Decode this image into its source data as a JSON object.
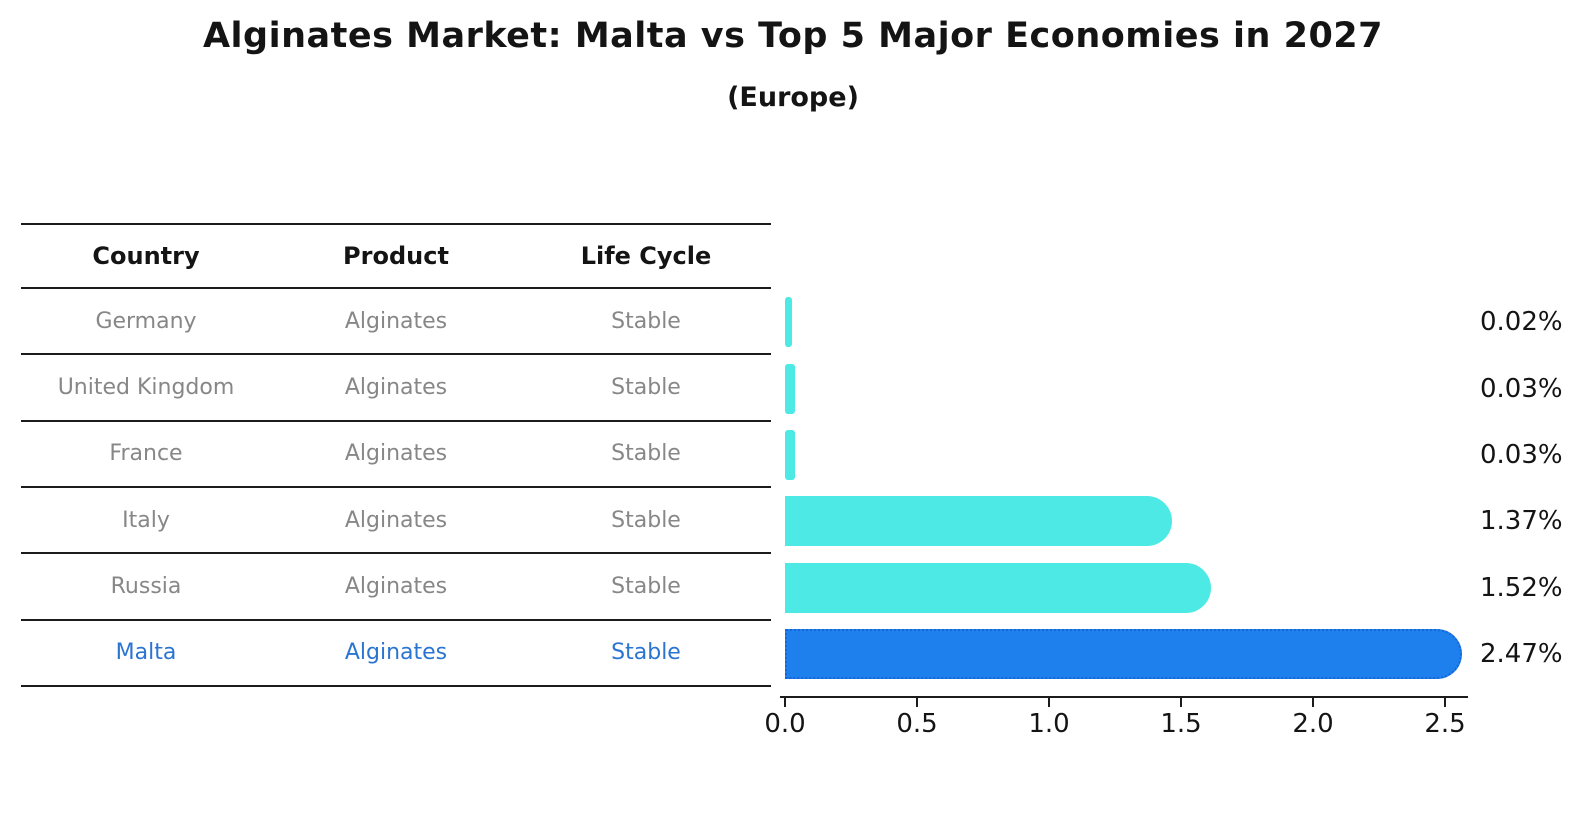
{
  "header": {
    "title": "Alginates Market: Malta vs Top 5 Major Economies in 2027",
    "subtitle": "(Europe)"
  },
  "table": {
    "columns": [
      "Country",
      "Product",
      "Life Cycle"
    ],
    "rows": [
      {
        "country": "Germany",
        "product": "Alginates",
        "life_cycle": "Stable",
        "highlight": false
      },
      {
        "country": "United Kingdom",
        "product": "Alginates",
        "life_cycle": "Stable",
        "highlight": false
      },
      {
        "country": "France",
        "product": "Alginates",
        "life_cycle": "Stable",
        "highlight": false
      },
      {
        "country": "Italy",
        "product": "Alginates",
        "life_cycle": "Stable",
        "highlight": false
      },
      {
        "country": "Russia",
        "product": "Alginates",
        "life_cycle": "Stable",
        "highlight": false
      },
      {
        "country": "Malta",
        "product": "Alginates",
        "life_cycle": "Stable",
        "highlight": true
      }
    ]
  },
  "chart_data": {
    "type": "bar",
    "orientation": "horizontal",
    "title": "Alginates Market: Malta vs Top 5 Major Economies in 2027",
    "subtitle": "(Europe)",
    "categories": [
      "Germany",
      "United Kingdom",
      "France",
      "Italy",
      "Russia",
      "Malta"
    ],
    "values": [
      0.02,
      0.03,
      0.03,
      1.37,
      1.52,
      2.47
    ],
    "value_labels": [
      "0.02%",
      "0.03%",
      "0.03%",
      "1.37%",
      "1.52%",
      "2.47%"
    ],
    "xlabel": "",
    "ylabel": "",
    "x_ticks": [
      "0.0",
      "0.5",
      "1.0",
      "1.5",
      "2.0",
      "2.5"
    ],
    "xlim": [
      0,
      2.58
    ],
    "grid": false,
    "legend": false,
    "default_color": "#4DE9E4",
    "highlight_color": "#1E80EC",
    "highlight_border_color": "#1567D8",
    "highlight_text_color": "#2B74D2",
    "text_color": "#141414",
    "muted_text_color": "#878787"
  }
}
